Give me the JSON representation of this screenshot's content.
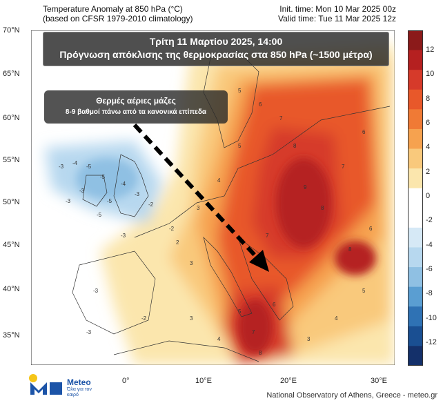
{
  "header": {
    "left_line1": "Temperature Anomaly at 850 hPa (°C)",
    "left_line2": "(based on CFSR 1979-2010 climatology)",
    "right_line1": "Init. time: Mon 10 Mar 2025 00z",
    "right_line2": "Valid time: Tue 11 Mar 2025 12z"
  },
  "title_box": {
    "line1": "Τρίτη 11 Μαρτίου 2025, 14:00",
    "line2": "Πρόγνωση απόκλισης της θερμοκρασίας στα 850 hPa (~1500 μέτρα)"
  },
  "annotation": {
    "line1": "Θερμές αέριες μάζες",
    "line2": "8-9 βαθμοί πάνω από τα κανονικά επίπεδα"
  },
  "axes": {
    "lat_labels": [
      "70°N",
      "65°N",
      "60°N",
      "55°N",
      "50°N",
      "45°N",
      "40°N",
      "35°N"
    ],
    "lon_labels": [
      "0°",
      "10°E",
      "20°E",
      "30°E"
    ]
  },
  "colorbar": {
    "labels": [
      "12",
      "10",
      "8",
      "6",
      "4",
      "2",
      "0",
      "-2",
      "-4",
      "-6",
      "-8",
      "-10",
      "-12"
    ],
    "colors": [
      "#8b1a1a",
      "#b52020",
      "#d63a2a",
      "#e8582a",
      "#f07a35",
      "#f6a24f",
      "#f9c97c",
      "#fbe6ad",
      "#ffffff",
      "#ffffff",
      "#d6e9f6",
      "#b7d8ef",
      "#8fc0e3",
      "#5a9ed2",
      "#2f72b4",
      "#1a4f92",
      "#14306a"
    ]
  },
  "logo": {
    "name": "Meteo",
    "tagline": "Όλα για τον καιρό"
  },
  "footer": "National Observatory of Athens, Greece - meteo.gr",
  "map_labels": {
    "anomaly_numbers": [
      "-3",
      "-4",
      "-5",
      "-5",
      "-4",
      "-3",
      "-2",
      "-3",
      "-3",
      "-5",
      "-5",
      "-3",
      "-2",
      "5",
      "6",
      "7",
      "8",
      "9",
      "8",
      "7",
      "6",
      "5",
      "4",
      "3",
      "2",
      "3",
      "7",
      "8",
      "6",
      "5",
      "4",
      "3",
      "-3",
      "-3",
      "-2",
      "3",
      "4",
      "5",
      "6",
      "7",
      "8"
    ]
  }
}
